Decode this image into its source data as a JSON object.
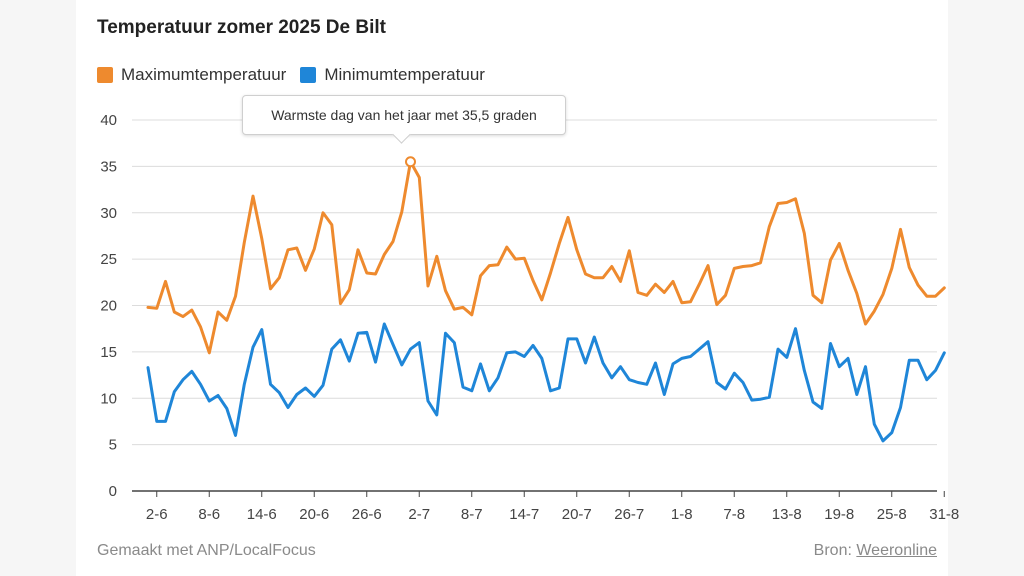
{
  "chart_data": {
    "type": "line",
    "title": "Temperatuur zomer 2025 De Bilt",
    "ylim": [
      0,
      40
    ],
    "yticks": [
      0,
      5,
      10,
      15,
      20,
      25,
      30,
      35,
      40
    ],
    "x_tick_labels": [
      "2-6",
      "8-6",
      "14-6",
      "20-6",
      "26-6",
      "2-7",
      "8-7",
      "14-7",
      "20-7",
      "26-7",
      "1-8",
      "7-8",
      "13-8",
      "19-8",
      "25-8",
      "31-8"
    ],
    "x_tick_day_index": [
      1,
      7,
      13,
      19,
      25,
      31,
      37,
      43,
      49,
      55,
      61,
      67,
      73,
      79,
      85,
      91
    ],
    "start_date": "1-6",
    "series": [
      {
        "name": "Maximumtemperatuur",
        "color": "#ee8a2e",
        "values": [
          19.8,
          19.7,
          22.6,
          19.3,
          18.8,
          19.5,
          17.7,
          14.9,
          19.3,
          18.4,
          21.0,
          26.8,
          31.8,
          27.2,
          21.8,
          23.0,
          26.0,
          26.2,
          23.8,
          26.1,
          30.0,
          28.7,
          20.2,
          21.7,
          26.0,
          23.5,
          23.4,
          25.5,
          26.9,
          30.1,
          35.5,
          33.8,
          22.1,
          25.3,
          21.6,
          19.6,
          19.8,
          19.0,
          23.2,
          24.3,
          24.4,
          26.3,
          25.0,
          25.1,
          22.7,
          20.6,
          23.5,
          26.7,
          29.5,
          26.0,
          23.4,
          23.0,
          23.0,
          24.2,
          22.6,
          25.9,
          21.4,
          21.1,
          22.3,
          21.4,
          22.6,
          20.3,
          20.4,
          22.3,
          24.3,
          20.1,
          21.1,
          24.0,
          24.2,
          24.3,
          24.6,
          28.5,
          31.0,
          31.1,
          31.5,
          27.8,
          21.1,
          20.3,
          24.9,
          26.7,
          23.8,
          21.3,
          18.0,
          19.4,
          21.2,
          24.0,
          28.2,
          24.1,
          22.2,
          21.0,
          21.0,
          21.9
        ]
      },
      {
        "name": "Minimumtemperatuur",
        "color": "#1f86d8",
        "values": [
          13.3,
          7.5,
          7.5,
          10.7,
          12.0,
          12.9,
          11.5,
          9.7,
          10.3,
          8.9,
          6.0,
          11.5,
          15.5,
          17.4,
          11.5,
          10.6,
          9.0,
          10.4,
          11.1,
          10.2,
          11.4,
          15.3,
          16.3,
          14.0,
          17.0,
          17.1,
          13.9,
          18.0,
          15.8,
          13.6,
          15.3,
          16.0,
          9.7,
          8.2,
          17.0,
          16.0,
          11.2,
          10.8,
          13.7,
          10.8,
          12.2,
          14.9,
          15.0,
          14.5,
          15.7,
          14.3,
          10.8,
          11.1,
          16.4,
          16.4,
          13.8,
          16.6,
          13.8,
          12.2,
          13.4,
          12.0,
          11.7,
          11.5,
          13.8,
          10.4,
          13.7,
          14.3,
          14.5,
          15.3,
          16.1,
          11.7,
          11.0,
          12.7,
          11.7,
          9.8,
          9.9,
          10.1,
          15.3,
          14.4,
          17.5,
          13.0,
          9.6,
          8.9,
          15.9,
          13.4,
          14.3,
          10.4,
          13.4,
          7.2,
          5.4,
          6.3,
          9.0,
          14.1,
          14.1,
          12.0,
          13.0,
          14.9
        ]
      }
    ],
    "annotation": {
      "text": "Warmste dag van het jaar met 35,5 graden",
      "series": "Maximumtemperatuur",
      "day_index": 30,
      "value": 35.5
    },
    "footer": {
      "left": "Gemaakt met ANP/LocalFocus",
      "source_prefix": "Bron: ",
      "source_link": "Weeronline"
    }
  }
}
